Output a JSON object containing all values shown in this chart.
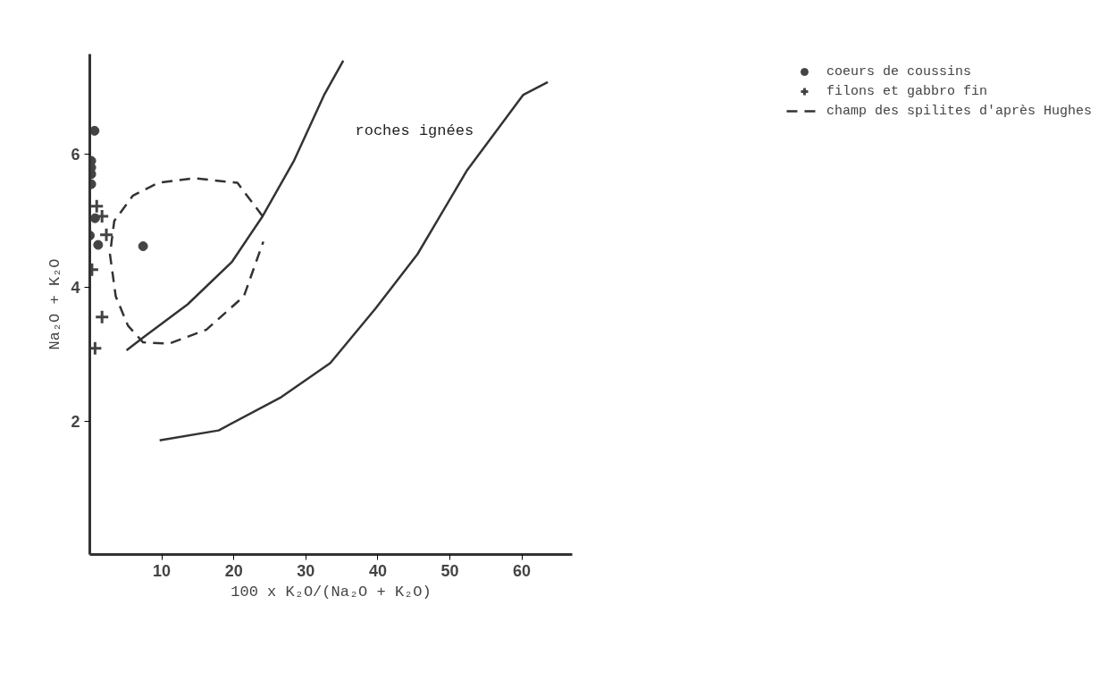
{
  "chart_data": {
    "type": "scatter",
    "xlabel": "100 x K₂O/(Na₂O + K₂O)",
    "ylabel": "Na₂O + K₂O",
    "xlim": [
      0,
      67
    ],
    "ylim": [
      0,
      7.5
    ],
    "xticks": [
      10,
      20,
      30,
      40,
      50,
      60
    ],
    "yticks": [
      2,
      4,
      6
    ],
    "grid": false,
    "legend": "top right",
    "series": [
      {
        "name": "coeurs de coussins",
        "marker": "circle",
        "color": "#444444",
        "x": [
          0.66,
          0.2,
          0.2,
          0.2,
          0.2,
          0.73,
          0.0,
          1.16,
          7.4
        ],
        "values": [
          6.35,
          5.9,
          5.8,
          5.7,
          5.55,
          5.04,
          4.78,
          4.64,
          4.62
        ]
      },
      {
        "name": "filons et gabbro fin",
        "marker": "cross",
        "color": "#444444",
        "x": [
          0.96,
          1.7,
          2.3,
          0.3,
          1.7,
          0.73
        ],
        "values": [
          5.22,
          5.07,
          4.79,
          4.27,
          3.56,
          3.09
        ]
      },
      {
        "type": "line",
        "line_style": "solid",
        "color": "#333333",
        "x": [
          5.1,
          7.4,
          13.6,
          19.7,
          24,
          28.3,
          32.6,
          35.2
        ],
        "values": [
          3.06,
          3.25,
          3.75,
          4.38,
          5.07,
          5.89,
          6.9,
          7.4
        ]
      },
      {
        "type": "line",
        "line_style": "solid",
        "color": "#333333",
        "x": [
          9.7,
          17.9,
          26.6,
          33.4,
          39.7,
          45.5,
          52.4,
          60.2,
          63.6
        ],
        "values": [
          1.71,
          1.86,
          2.36,
          2.87,
          3.69,
          4.5,
          5.76,
          6.89,
          7.08
        ]
      },
      {
        "name": "champ des spilites d'après Hughes",
        "type": "line",
        "line_style": "dashed",
        "color": "#333333",
        "x": [
          24.0,
          20.5,
          14.5,
          9.5,
          6.0,
          3.4,
          2.8,
          3.6,
          5.3,
          7.4,
          11.0,
          16.2,
          21.4,
          24.1
        ],
        "values": [
          5.07,
          5.57,
          5.64,
          5.57,
          5.38,
          5.0,
          4.5,
          3.87,
          3.43,
          3.18,
          3.16,
          3.37,
          3.87,
          4.69
        ]
      }
    ],
    "annotations": [
      "roches ignées"
    ]
  }
}
